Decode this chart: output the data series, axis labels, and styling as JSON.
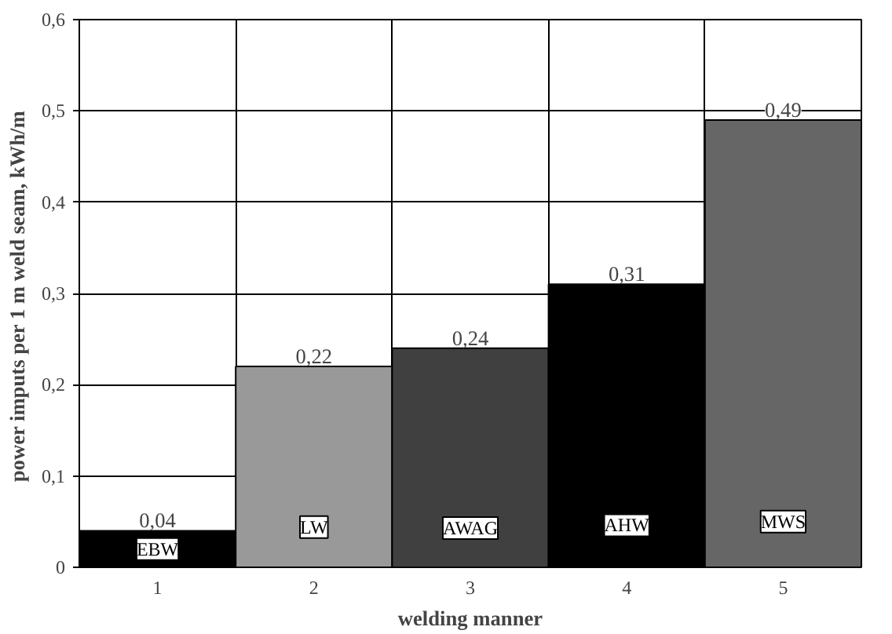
{
  "chart_data": {
    "type": "bar",
    "xlabel": "welding manner",
    "ylabel": "power imputs per 1  m weld seam, kWh/m",
    "categories": [
      "1",
      "2",
      "3",
      "4",
      "5"
    ],
    "values": [
      0.04,
      0.22,
      0.24,
      0.31,
      0.49
    ],
    "colors": [
      "#000000",
      "#999999",
      "#404040",
      "#000000",
      "#666666"
    ],
    "value_labels": [
      "0,04",
      "0,22",
      "0,24",
      "0,31",
      "0,49"
    ],
    "ylim": [
      0,
      0.6
    ],
    "yticks": [
      {
        "value": 0,
        "label": "0"
      },
      {
        "value": 0.1,
        "label": "0,1"
      },
      {
        "value": 0.2,
        "label": "0,2"
      },
      {
        "value": 0.3,
        "label": "0,3"
      },
      {
        "value": 0.4,
        "label": "0,4"
      },
      {
        "value": 0.5,
        "label": "0,5"
      },
      {
        "value": 0.6,
        "label": "0,6"
      }
    ],
    "grid": true,
    "annotations": [
      {
        "text": "EBW",
        "x": "1",
        "y": 0.02
      },
      {
        "text": "LW",
        "x": "2",
        "y": 0.044
      },
      {
        "text": "AWAG",
        "x": "3",
        "y": 0.043
      },
      {
        "text": "AHW",
        "x": "4",
        "y": 0.046
      },
      {
        "text": "MWS",
        "x": "5",
        "y": 0.05
      }
    ]
  }
}
